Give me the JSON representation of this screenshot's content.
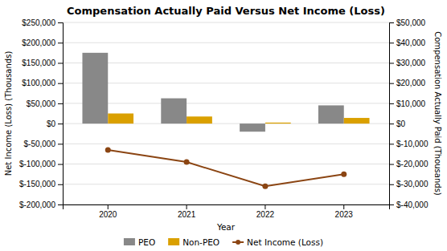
{
  "chart_data": {
    "type": "bar",
    "title": "Compensation Actually Paid Versus Net Income (Loss)",
    "x_label": "Year",
    "y_label": "Net Income (Loss) (Thousands)",
    "y2_label": "Compensation Actually Paid (Thousands)",
    "categories": [
      "2020",
      "2021",
      "2022",
      "2023"
    ],
    "series": [
      {
        "name": "PEO",
        "type": "bar",
        "axis": "y2",
        "color": "#888888",
        "values": [
          35000,
          12500,
          -4000,
          9000
        ]
      },
      {
        "name": "Non-PEO",
        "type": "bar",
        "axis": "y2",
        "color": "#DAA000",
        "values": [
          5000,
          3500,
          500,
          2800
        ]
      },
      {
        "name": "Net Income (Loss)",
        "type": "line",
        "axis": "y",
        "color": "#8B4513",
        "marker": "circle",
        "values": [
          -65000,
          -95000,
          -155000,
          -125000
        ]
      }
    ],
    "ylim": [
      -200000,
      250000
    ],
    "yticks": [
      {
        "value": -200000,
        "label": "$-200,000"
      },
      {
        "value": -150000,
        "label": "$-150,000"
      },
      {
        "value": -100000,
        "label": "$-100,000"
      },
      {
        "value": -50000,
        "label": "$-50,000"
      },
      {
        "value": 0,
        "label": "$0"
      },
      {
        "value": 50000,
        "label": "$50,000"
      },
      {
        "value": 100000,
        "label": "$100,000"
      },
      {
        "value": 150000,
        "label": "$150,000"
      },
      {
        "value": 200000,
        "label": "$200,000"
      },
      {
        "value": 250000,
        "label": "$250,000"
      }
    ],
    "y2lim": [
      -40000,
      50000
    ],
    "y2ticks": [
      {
        "value": -40000,
        "label": "$-40,000"
      },
      {
        "value": -30000,
        "label": "$-30,000"
      },
      {
        "value": -20000,
        "label": "$-20,000"
      },
      {
        "value": -10000,
        "label": "$-10,000"
      },
      {
        "value": 0,
        "label": "$0"
      },
      {
        "value": 10000,
        "label": "$10,000"
      },
      {
        "value": 20000,
        "label": "$20,000"
      },
      {
        "value": 30000,
        "label": "$30,000"
      },
      {
        "value": 40000,
        "label": "$40,000"
      },
      {
        "value": 50000,
        "label": "$50,000"
      }
    ],
    "grid": true,
    "legend": "bottom"
  }
}
